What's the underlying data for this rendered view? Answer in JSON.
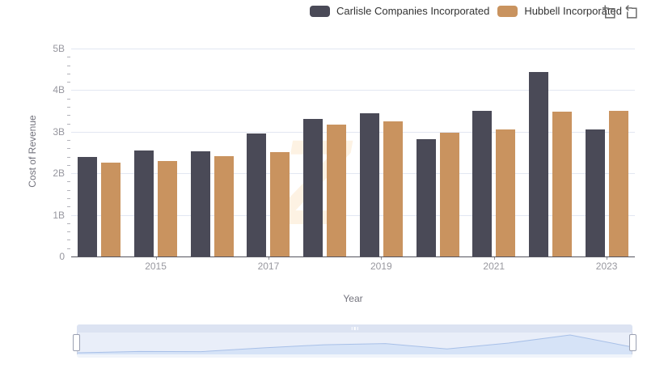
{
  "legend": {
    "items": [
      {
        "label": "Carlisle Companies Incorporated",
        "color": "#4a4a57"
      },
      {
        "label": "Hubbell Incorporated",
        "color": "#c9935f"
      }
    ]
  },
  "toolbox": {
    "icons": [
      {
        "name": "zoom-select"
      },
      {
        "name": "zoom-reset"
      }
    ]
  },
  "chart_data": {
    "type": "bar",
    "title": "",
    "categories": [
      "2014",
      "2015",
      "2016",
      "2017",
      "2018",
      "2019",
      "2020",
      "2021",
      "2022",
      "2023"
    ],
    "series": [
      {
        "name": "Carlisle Companies Incorporated",
        "color": "#4a4a57",
        "values": [
          2.39,
          2.54,
          2.52,
          2.95,
          3.31,
          3.45,
          2.83,
          3.5,
          4.43,
          3.06
        ]
      },
      {
        "name": "Hubbell Incorporated",
        "color": "#c9935f",
        "values": [
          2.25,
          2.29,
          2.41,
          2.51,
          3.18,
          3.25,
          2.98,
          3.06,
          3.49,
          3.5
        ]
      }
    ],
    "value_unit": "billions",
    "xlabel": "Year",
    "ylabel": "Cost of Revenue",
    "ylim": [
      0,
      5
    ],
    "y_tick_labels": [
      "0",
      "1B",
      "2B",
      "3B",
      "4B",
      "5B"
    ],
    "x_tick_labels_shown": [
      "2015",
      "2017",
      "2019",
      "2021",
      "2023"
    ],
    "grid": true,
    "legend_position": "top"
  },
  "datazoom": {
    "type": "slider",
    "selection": "full-range",
    "shadow_series": "Carlisle Companies Incorporated"
  },
  "watermark": {
    "glyph": "Z"
  }
}
